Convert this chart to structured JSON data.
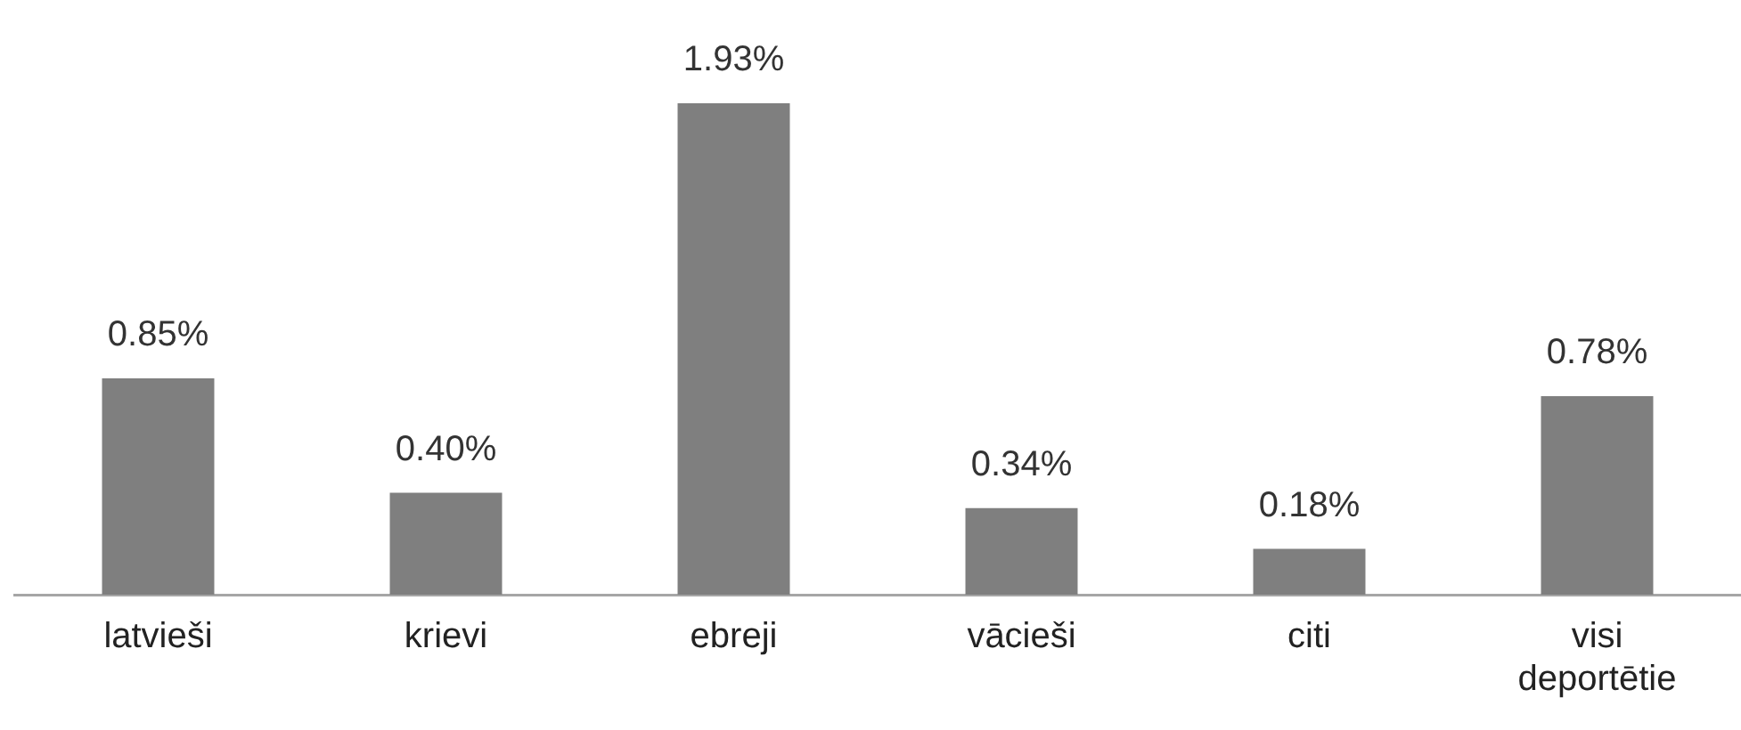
{
  "chart_data": {
    "type": "bar",
    "categories": [
      "latvieši",
      "krievi",
      "ebreji",
      "vācieši",
      "citi",
      "visi\ndeportētie"
    ],
    "values": [
      0.85,
      0.4,
      1.93,
      0.34,
      0.18,
      0.78
    ],
    "value_labels": [
      "0.85%",
      "0.40%",
      "1.93%",
      "0.34%",
      "0.18%",
      "0.78%"
    ],
    "color": "#7f7f7f",
    "grid": false,
    "legend": false
  }
}
